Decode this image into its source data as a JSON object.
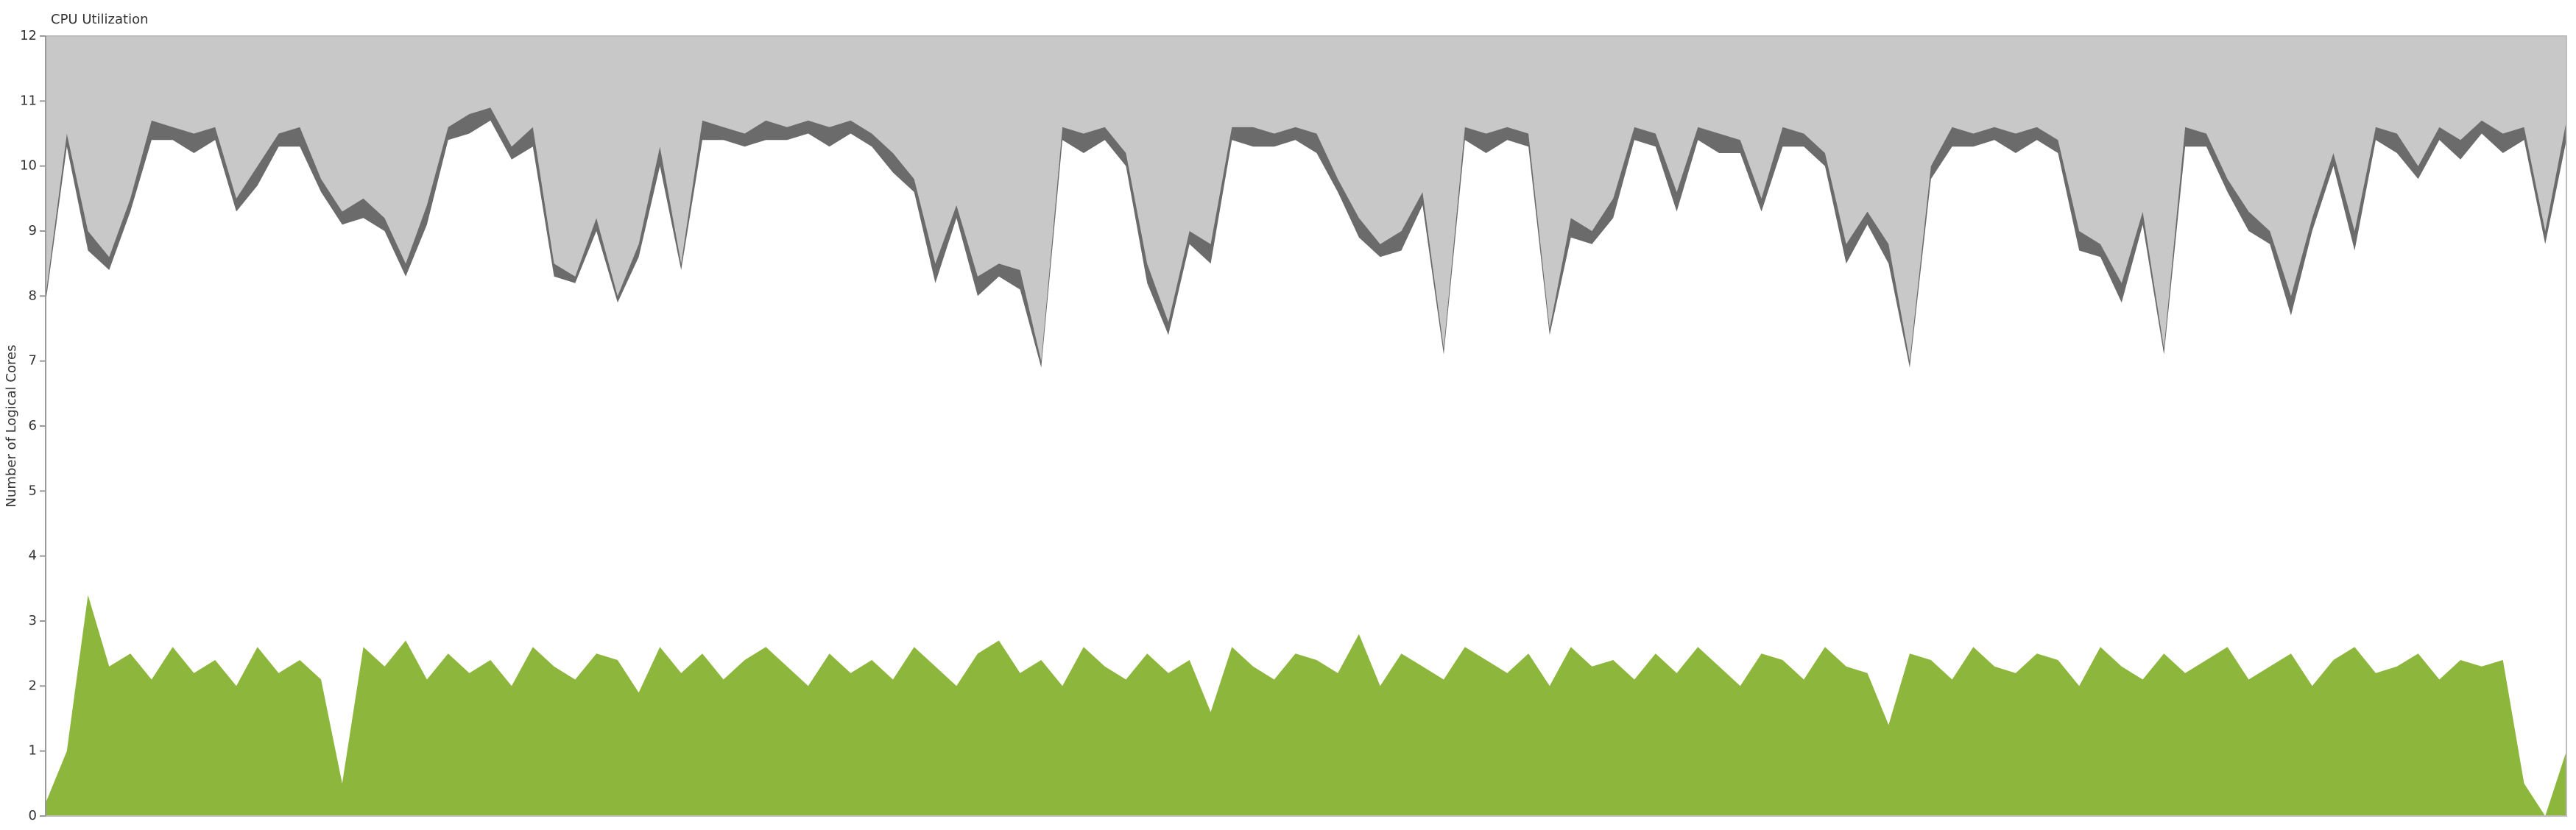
{
  "chart_data": {
    "type": "area",
    "title": "CPU Utilization",
    "y_label": "Number of Logical Cores",
    "ylim": [
      0,
      12
    ],
    "yticks": [
      0,
      1,
      2,
      3,
      4,
      5,
      6,
      7,
      8,
      9,
      10,
      11,
      12
    ],
    "series": [
      {
        "color": "#8db63c",
        "values": [
          0.2,
          1.0,
          3.4,
          2.3,
          2.5,
          2.1,
          2.6,
          2.2,
          2.4,
          2.0,
          2.6,
          2.2,
          2.4,
          2.1,
          0.5,
          2.6,
          2.3,
          2.7,
          2.1,
          2.5,
          2.2,
          2.4,
          2.0,
          2.6,
          2.3,
          2.1,
          2.5,
          2.4,
          1.9,
          2.6,
          2.2,
          2.5,
          2.1,
          2.4,
          2.6,
          2.3,
          2.0,
          2.5,
          2.2,
          2.4,
          2.1,
          2.6,
          2.3,
          2.0,
          2.5,
          2.7,
          2.2,
          2.4,
          2.0,
          2.6,
          2.3,
          2.1,
          2.5,
          2.2,
          2.4,
          1.6,
          2.6,
          2.3,
          2.1,
          2.5,
          2.4,
          2.2,
          2.8,
          2.0,
          2.5,
          2.3,
          2.1,
          2.6,
          2.4,
          2.2,
          2.5,
          2.0,
          2.6,
          2.3,
          2.4,
          2.1,
          2.5,
          2.2,
          2.6,
          2.3,
          2.0,
          2.5,
          2.4,
          2.1,
          2.6,
          2.3,
          2.2,
          1.4,
          2.5,
          2.4,
          2.1,
          2.6,
          2.3,
          2.2,
          2.5,
          2.4,
          2.0,
          2.6,
          2.3,
          2.1,
          2.5,
          2.2,
          2.4,
          2.6,
          2.1,
          2.3,
          2.5,
          2.0,
          2.4,
          2.6,
          2.2,
          2.3,
          2.5,
          2.1,
          2.4,
          2.3,
          2.4,
          0.5,
          0,
          1.0
        ]
      },
      {
        "color": "#c8c8c8",
        "values": [
          4.0,
          1.5,
          3.0,
          3.4,
          2.5,
          1.3,
          1.4,
          1.5,
          1.4,
          2.5,
          2.0,
          1.5,
          1.4,
          2.2,
          2.7,
          2.5,
          2.8,
          3.5,
          2.6,
          1.4,
          1.2,
          1.1,
          1.7,
          1.4,
          3.5,
          3.7,
          2.8,
          4.0,
          3.2,
          1.7,
          3.5,
          1.3,
          1.4,
          1.5,
          1.3,
          1.4,
          1.3,
          1.4,
          1.3,
          1.5,
          1.8,
          2.2,
          3.5,
          2.6,
          3.7,
          3.5,
          3.6,
          5.0,
          1.4,
          1.5,
          1.4,
          1.8,
          3.5,
          4.4,
          3.0,
          3.2,
          1.4,
          1.4,
          1.5,
          1.4,
          1.5,
          2.2,
          2.8,
          3.2,
          3.0,
          2.4,
          4.8,
          1.4,
          1.5,
          1.4,
          1.5,
          4.5,
          2.8,
          3.0,
          2.5,
          1.4,
          1.5,
          2.4,
          1.4,
          1.5,
          1.6,
          2.5,
          1.4,
          1.5,
          1.8,
          3.2,
          2.7,
          3.2,
          5.0,
          2.0,
          1.4,
          1.5,
          1.4,
          1.5,
          1.4,
          1.6,
          3.0,
          3.2,
          3.8,
          2.7,
          4.8,
          1.4,
          1.5,
          2.2,
          2.7,
          3.0,
          4.0,
          2.8,
          1.8,
          3.0,
          1.4,
          1.5,
          2.0,
          1.4,
          1.6,
          1.3,
          1.5,
          1.4,
          3.0,
          1.3
        ]
      },
      {
        "color": "#6b6b6b",
        "values": [
          0.1,
          0.2,
          0.3,
          0.2,
          0.2,
          0.3,
          0.2,
          0.3,
          0.2,
          0.2,
          0.3,
          0.2,
          0.3,
          0.2,
          0.2,
          0.3,
          0.2,
          0.2,
          0.3,
          0.2,
          0.3,
          0.2,
          0.2,
          0.3,
          0.2,
          0.1,
          0.2,
          0.1,
          0.2,
          0.3,
          0.1,
          0.3,
          0.2,
          0.2,
          0.3,
          0.2,
          0.2,
          0.3,
          0.2,
          0.2,
          0.3,
          0.2,
          0.3,
          0.2,
          0.3,
          0.2,
          0.3,
          0.1,
          0.2,
          0.3,
          0.2,
          0.2,
          0.3,
          0.2,
          0.2,
          0.3,
          0.2,
          0.3,
          0.2,
          0.2,
          0.3,
          0.2,
          0.3,
          0.2,
          0.3,
          0.2,
          0.1,
          0.2,
          0.3,
          0.2,
          0.2,
          0.1,
          0.3,
          0.2,
          0.3,
          0.2,
          0.2,
          0.3,
          0.2,
          0.3,
          0.2,
          0.2,
          0.3,
          0.2,
          0.2,
          0.3,
          0.2,
          0.3,
          0.1,
          0.2,
          0.3,
          0.2,
          0.2,
          0.3,
          0.2,
          0.2,
          0.3,
          0.2,
          0.3,
          0.2,
          0.1,
          0.3,
          0.2,
          0.2,
          0.3,
          0.2,
          0.3,
          0.2,
          0.2,
          0.3,
          0.2,
          0.3,
          0.2,
          0.2,
          0.3,
          0.2,
          0.3,
          0.2,
          0.2,
          0.3
        ]
      }
    ]
  }
}
